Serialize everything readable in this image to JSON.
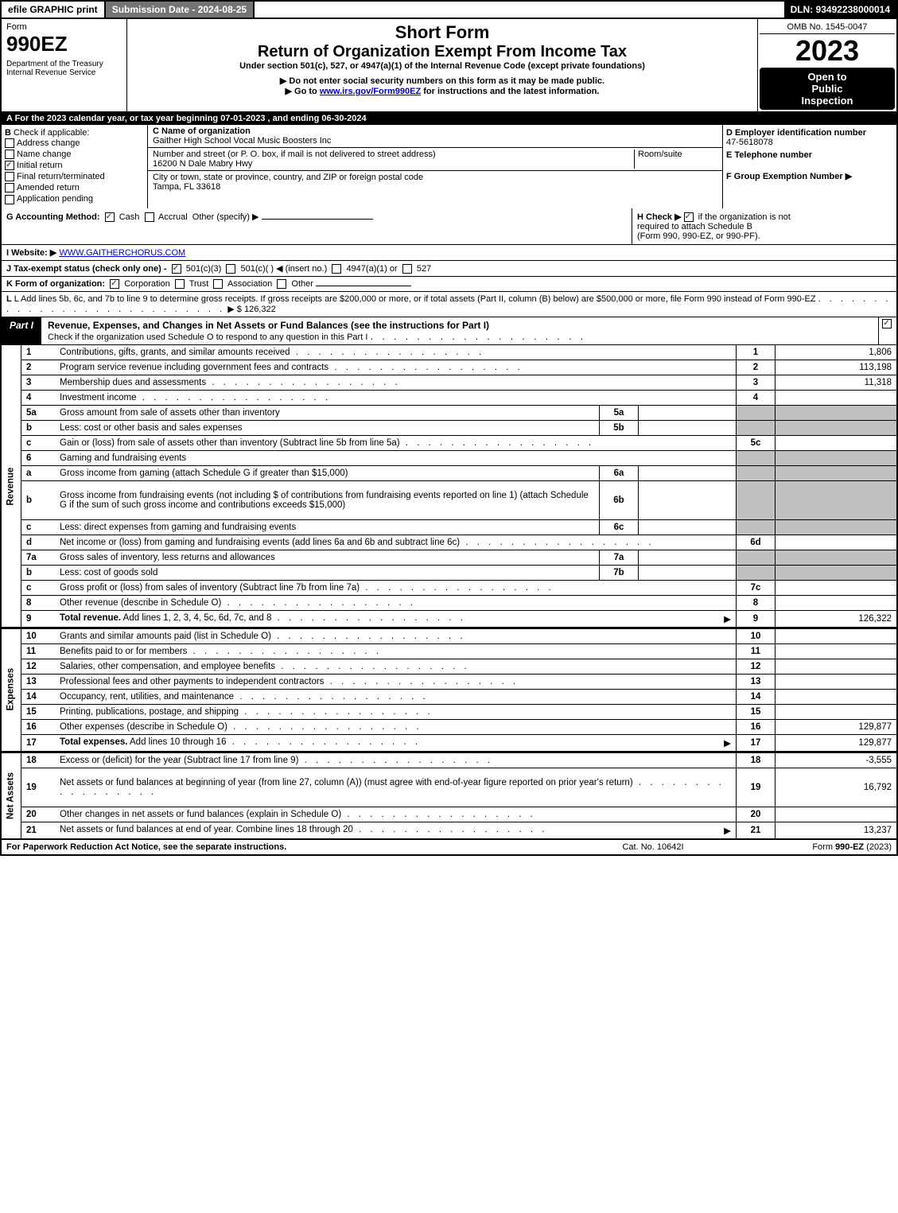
{
  "topbar": {
    "efile": "efile GRAPHIC print",
    "submission": "Submission Date - 2024-08-25",
    "dln": "DLN: 93492238000014"
  },
  "header": {
    "form_word": "Form",
    "form_num": "990EZ",
    "dept1": "Department of the Treasury",
    "dept2": "Internal Revenue Service",
    "short_form": "Short Form",
    "title": "Return of Organization Exempt From Income Tax",
    "subtitle": "Under section 501(c), 527, or 4947(a)(1) of the Internal Revenue Code (except private foundations)",
    "note1": "▶ Do not enter social security numbers on this form as it may be made public.",
    "note2": "▶ Go to www.irs.gov/Form990EZ for instructions and the latest information.",
    "omb": "OMB No. 1545-0047",
    "year": "2023",
    "open1": "Open to",
    "open2": "Public",
    "open3": "Inspection"
  },
  "sectionA": "A  For the 2023 calendar year, or tax year beginning 07-01-2023 , and ending 06-30-2024",
  "sectionB": {
    "title": "B",
    "label": "Check if applicable:",
    "addr": "Address change",
    "name": "Name change",
    "initial": "Initial return",
    "final": "Final return/terminated",
    "amended": "Amended return",
    "pending": "Application pending"
  },
  "sectionC": {
    "label_name": "C Name of organization",
    "org_name": "Gaither High School Vocal Music Boosters Inc",
    "label_addr": "Number and street (or P. O. box, if mail is not delivered to street address)",
    "room": "Room/suite",
    "addr": "16200 N Dale Mabry Hwy",
    "label_city": "City or town, state or province, country, and ZIP or foreign postal code",
    "city": "Tampa, FL  33618"
  },
  "sectionD": {
    "label": "D Employer identification number",
    "ein": "47-5618078",
    "label_e": "E Telephone number",
    "label_f": "F Group Exemption Number  ▶"
  },
  "line_g": "G Accounting Method:",
  "g_cash": "Cash",
  "g_accrual": "Accrual",
  "g_other": "Other (specify) ▶",
  "line_h": "H   Check ▶",
  "h_text1": "if the organization is not",
  "h_text2": "required to attach Schedule B",
  "h_text3": "(Form 990, 990-EZ, or 990-PF).",
  "line_i": "I Website: ▶",
  "website": "WWW.GAITHERCHORUS.COM",
  "line_j": "J Tax-exempt status (check only one) -",
  "j_501c3": "501(c)(3)",
  "j_501c": "501(c)(  ) ◀ (insert no.)",
  "j_4947": "4947(a)(1) or",
  "j_527": "527",
  "line_k": "K Form of organization:",
  "k_corp": "Corporation",
  "k_trust": "Trust",
  "k_assoc": "Association",
  "k_other": "Other",
  "line_l": "L Add lines 5b, 6c, and 7b to line 9 to determine gross receipts. If gross receipts are $200,000 or more, or if total assets (Part II, column (B) below) are $500,000 or more, file Form 990 instead of Form 990-EZ",
  "line_l_amt": "▶ $ 126,322",
  "part1": {
    "tab": "Part I",
    "title": "Revenue, Expenses, and Changes in Net Assets or Fund Balances (see the instructions for Part I)",
    "sub": "Check if the organization used Schedule O to respond to any question in this Part I"
  },
  "sidelabels": {
    "revenue": "Revenue",
    "expenses": "Expenses",
    "netassets": "Net Assets"
  },
  "rows": [
    {
      "n": "1",
      "d": "Contributions, gifts, grants, and similar amounts received",
      "c": "1",
      "a": "1,806"
    },
    {
      "n": "2",
      "d": "Program service revenue including government fees and contracts",
      "c": "2",
      "a": "113,198"
    },
    {
      "n": "3",
      "d": "Membership dues and assessments",
      "c": "3",
      "a": "11,318"
    },
    {
      "n": "4",
      "d": "Investment income",
      "c": "4",
      "a": ""
    },
    {
      "n": "5a",
      "d": "Gross amount from sale of assets other than inventory",
      "sub": "5a",
      "shaded": true
    },
    {
      "n": "b",
      "d": "Less: cost or other basis and sales expenses",
      "sub": "5b",
      "shaded": true
    },
    {
      "n": "c",
      "d": "Gain or (loss) from sale of assets other than inventory (Subtract line 5b from line 5a)",
      "c": "5c",
      "a": ""
    },
    {
      "n": "6",
      "d": "Gaming and fundraising events",
      "shaded": true,
      "noamt": true
    },
    {
      "n": "a",
      "d": "Gross income from gaming (attach Schedule G if greater than $15,000)",
      "sub": "6a",
      "shaded": true
    },
    {
      "n": "b",
      "d": "Gross income from fundraising events (not including $                    of contributions from fundraising events reported on line 1) (attach Schedule G if the sum of such gross income and contributions exceeds $15,000)",
      "sub": "6b",
      "shaded": true,
      "tall": true
    },
    {
      "n": "c",
      "d": "Less: direct expenses from gaming and fundraising events",
      "sub": "6c",
      "shaded": true
    },
    {
      "n": "d",
      "d": "Net income or (loss) from gaming and fundraising events (add lines 6a and 6b and subtract line 6c)",
      "c": "6d",
      "a": ""
    },
    {
      "n": "7a",
      "d": "Gross sales of inventory, less returns and allowances",
      "sub": "7a",
      "shaded": true
    },
    {
      "n": "b",
      "d": "Less: cost of goods sold",
      "sub": "7b",
      "shaded": true
    },
    {
      "n": "c",
      "d": "Gross profit or (loss) from sales of inventory (Subtract line 7b from line 7a)",
      "c": "7c",
      "a": ""
    },
    {
      "n": "8",
      "d": "Other revenue (describe in Schedule O)",
      "c": "8",
      "a": ""
    },
    {
      "n": "9",
      "d": "Total revenue. Add lines 1, 2, 3, 4, 5c, 6d, 7c, and 8",
      "c": "9",
      "a": "126,322",
      "bold": true,
      "arrow": true
    }
  ],
  "exp_rows": [
    {
      "n": "10",
      "d": "Grants and similar amounts paid (list in Schedule O)",
      "c": "10",
      "a": ""
    },
    {
      "n": "11",
      "d": "Benefits paid to or for members",
      "c": "11",
      "a": ""
    },
    {
      "n": "12",
      "d": "Salaries, other compensation, and employee benefits",
      "c": "12",
      "a": ""
    },
    {
      "n": "13",
      "d": "Professional fees and other payments to independent contractors",
      "c": "13",
      "a": ""
    },
    {
      "n": "14",
      "d": "Occupancy, rent, utilities, and maintenance",
      "c": "14",
      "a": ""
    },
    {
      "n": "15",
      "d": "Printing, publications, postage, and shipping",
      "c": "15",
      "a": ""
    },
    {
      "n": "16",
      "d": "Other expenses (describe in Schedule O)",
      "c": "16",
      "a": "129,877"
    },
    {
      "n": "17",
      "d": "Total expenses. Add lines 10 through 16",
      "c": "17",
      "a": "129,877",
      "bold": true,
      "arrow": true
    }
  ],
  "na_rows": [
    {
      "n": "18",
      "d": "Excess or (deficit) for the year (Subtract line 17 from line 9)",
      "c": "18",
      "a": "-3,555"
    },
    {
      "n": "19",
      "d": "Net assets or fund balances at beginning of year (from line 27, column (A)) (must agree with end-of-year figure reported on prior year's return)",
      "c": "19",
      "a": "16,792",
      "tall": true
    },
    {
      "n": "20",
      "d": "Other changes in net assets or fund balances (explain in Schedule O)",
      "c": "20",
      "a": ""
    },
    {
      "n": "21",
      "d": "Net assets or fund balances at end of year. Combine lines 18 through 20",
      "c": "21",
      "a": "13,237",
      "arrow": true
    }
  ],
  "footer": {
    "f1": "For Paperwork Reduction Act Notice, see the separate instructions.",
    "f2": "Cat. No. 10642I",
    "f3": "Form 990-EZ (2023)"
  }
}
